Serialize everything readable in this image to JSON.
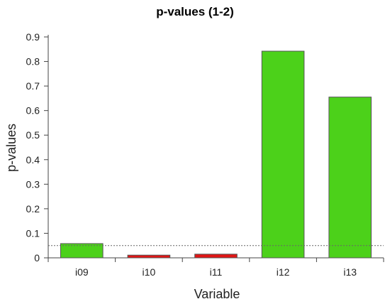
{
  "chart_data": {
    "type": "bar",
    "title": "p-values (1-2)",
    "xlabel": "Variable",
    "ylabel": "p-values",
    "categories": [
      "i09",
      "i10",
      "i11",
      "i12",
      "i13"
    ],
    "values": [
      0.058,
      0.011,
      0.015,
      0.842,
      0.655
    ],
    "bar_colors": [
      "#4cd11a",
      "#e01616",
      "#e01616",
      "#4cd11a",
      "#4cd11a"
    ],
    "threshold": 0.05,
    "ylim": [
      0,
      0.9
    ],
    "yticks": [
      "0",
      "0.1",
      "0.2",
      "0.3",
      "0.4",
      "0.5",
      "0.6",
      "0.7",
      "0.8",
      "0.9"
    ],
    "grid": false,
    "legend": "none"
  }
}
